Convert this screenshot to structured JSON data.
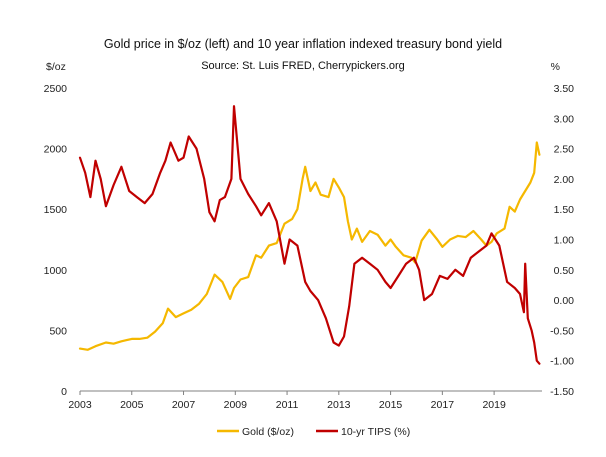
{
  "chart_data": {
    "type": "line",
    "title": "Gold price in $/oz (left) and 10 year inflation indexed treasury bond yield",
    "subtitle": "Source: St. Luis FRED, Cherrypickers.org",
    "left_axis": {
      "unit_label": "$/oz",
      "range": [
        0,
        2500
      ],
      "ticks": [
        0,
        500,
        1000,
        1500,
        2000,
        2500
      ],
      "tick_labels": [
        "0",
        "500",
        "1000",
        "1500",
        "2000",
        "2500"
      ]
    },
    "right_axis": {
      "unit_label": "%",
      "range": [
        -1.5,
        3.5
      ],
      "ticks": [
        -1.5,
        -1.0,
        -0.5,
        0.0,
        0.5,
        1.0,
        1.5,
        2.0,
        2.5,
        3.0,
        3.5
      ],
      "tick_labels": [
        "-1.50",
        "-1.00",
        "-0.50",
        "0.00",
        "0.50",
        "1.00",
        "1.50",
        "2.00",
        "2.50",
        "3.00",
        "3.50"
      ]
    },
    "x_axis": {
      "range": [
        2003,
        2020.85
      ],
      "ticks": [
        2003,
        2005,
        2007,
        2009,
        2011,
        2013,
        2015,
        2017,
        2019
      ],
      "tick_labels": [
        "2003",
        "2005",
        "2007",
        "2009",
        "2011",
        "2013",
        "2015",
        "2017",
        "2019"
      ]
    },
    "grid": false,
    "legend_position": "bottom-center",
    "series": [
      {
        "name": "Gold ($/oz)",
        "axis": "left",
        "color": "#f5b800",
        "x": [
          2003.0,
          2003.3,
          2003.6,
          2004.0,
          2004.3,
          2004.6,
          2005.0,
          2005.3,
          2005.6,
          2005.9,
          2006.2,
          2006.4,
          2006.7,
          2007.0,
          2007.3,
          2007.6,
          2007.9,
          2008.2,
          2008.5,
          2008.8,
          2008.95,
          2009.2,
          2009.5,
          2009.8,
          2010.0,
          2010.3,
          2010.6,
          2010.9,
          2011.2,
          2011.4,
          2011.6,
          2011.7,
          2011.9,
          2012.1,
          2012.3,
          2012.6,
          2012.8,
          2013.0,
          2013.2,
          2013.35,
          2013.5,
          2013.7,
          2013.9,
          2014.2,
          2014.5,
          2014.8,
          2015.0,
          2015.2,
          2015.5,
          2015.8,
          2015.95,
          2016.2,
          2016.5,
          2016.8,
          2017.0,
          2017.3,
          2017.6,
          2017.9,
          2018.2,
          2018.5,
          2018.7,
          2018.9,
          2019.1,
          2019.4,
          2019.6,
          2019.8,
          2020.0,
          2020.2,
          2020.4,
          2020.55,
          2020.65,
          2020.75
        ],
        "values": [
          350,
          340,
          370,
          400,
          390,
          410,
          430,
          430,
          440,
          490,
          560,
          680,
          610,
          640,
          670,
          720,
          800,
          960,
          900,
          760,
          850,
          920,
          940,
          1120,
          1100,
          1200,
          1220,
          1380,
          1420,
          1500,
          1750,
          1850,
          1650,
          1720,
          1620,
          1600,
          1750,
          1680,
          1600,
          1400,
          1250,
          1340,
          1230,
          1320,
          1290,
          1200,
          1250,
          1190,
          1120,
          1100,
          1060,
          1240,
          1330,
          1250,
          1190,
          1250,
          1280,
          1270,
          1320,
          1250,
          1200,
          1230,
          1300,
          1340,
          1520,
          1480,
          1580,
          1650,
          1720,
          1800,
          2050,
          1950
        ]
      },
      {
        "name": "10-yr TIPS (%)",
        "axis": "right",
        "color": "#c00000",
        "x": [
          2003.0,
          2003.2,
          2003.4,
          2003.6,
          2003.8,
          2004.0,
          2004.3,
          2004.6,
          2004.9,
          2005.2,
          2005.5,
          2005.8,
          2006.1,
          2006.3,
          2006.5,
          2006.8,
          2007.0,
          2007.2,
          2007.5,
          2007.8,
          2008.0,
          2008.2,
          2008.4,
          2008.6,
          2008.85,
          2008.95,
          2009.2,
          2009.5,
          2009.8,
          2010.0,
          2010.3,
          2010.6,
          2010.9,
          2011.1,
          2011.4,
          2011.7,
          2011.9,
          2012.2,
          2012.5,
          2012.8,
          2013.0,
          2013.2,
          2013.4,
          2013.6,
          2013.9,
          2014.2,
          2014.5,
          2014.8,
          2015.0,
          2015.3,
          2015.6,
          2015.9,
          2016.1,
          2016.3,
          2016.6,
          2016.9,
          2017.2,
          2017.5,
          2017.8,
          2018.1,
          2018.4,
          2018.7,
          2018.9,
          2019.2,
          2019.5,
          2019.8,
          2020.0,
          2020.15,
          2020.2,
          2020.3,
          2020.45,
          2020.55,
          2020.65,
          2020.75
        ],
        "values": [
          2.35,
          2.1,
          1.7,
          2.3,
          2.0,
          1.55,
          1.9,
          2.2,
          1.8,
          1.7,
          1.6,
          1.75,
          2.1,
          2.3,
          2.6,
          2.3,
          2.35,
          2.7,
          2.5,
          2.0,
          1.45,
          1.3,
          1.65,
          1.7,
          2.0,
          3.2,
          2.0,
          1.75,
          1.55,
          1.4,
          1.6,
          1.3,
          0.6,
          1.0,
          0.9,
          0.3,
          0.15,
          0.0,
          -0.3,
          -0.7,
          -0.75,
          -0.6,
          -0.1,
          0.6,
          0.7,
          0.6,
          0.5,
          0.3,
          0.2,
          0.4,
          0.6,
          0.7,
          0.5,
          0.0,
          0.1,
          0.4,
          0.35,
          0.5,
          0.4,
          0.7,
          0.8,
          0.9,
          1.1,
          0.9,
          0.3,
          0.2,
          0.1,
          -0.2,
          0.6,
          -0.3,
          -0.5,
          -0.7,
          -1.0,
          -1.05
        ]
      }
    ]
  }
}
